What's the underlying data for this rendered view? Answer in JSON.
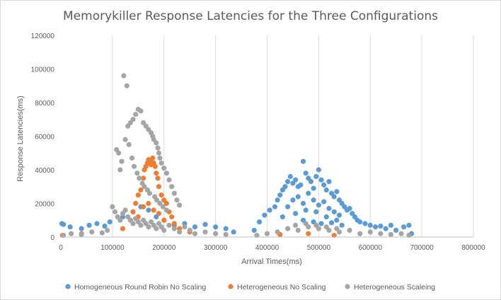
{
  "chart_data": {
    "type": "scatter",
    "title": "Memorykiller Response Latencies for the Three Configurations",
    "xlabel": "Arrival Times(ms)",
    "ylabel": "Response Latencies(ms)",
    "xlim": [
      0,
      800000
    ],
    "ylim": [
      0,
      120000
    ],
    "xticks": [
      0,
      100000,
      200000,
      300000,
      400000,
      500000,
      600000,
      700000,
      800000
    ],
    "yticks": [
      0,
      20000,
      40000,
      60000,
      80000,
      100000,
      120000
    ],
    "x_tick_labels": [
      "0",
      "100000",
      "200000",
      "300000",
      "400000",
      "500000",
      "600000",
      "700000",
      "800000"
    ],
    "y_tick_labels": [
      "0",
      "20000",
      "40000",
      "60000",
      "80000",
      "100000",
      "120000"
    ],
    "grid": "vertical",
    "legend_position": "bottom",
    "series": [
      {
        "name": "Homogeneous Round Robin No Scaling",
        "color": "#5b9bd5",
        "points": [
          [
            2000,
            8000
          ],
          [
            5000,
            7500
          ],
          [
            18000,
            6000
          ],
          [
            40000,
            5000
          ],
          [
            55000,
            7000
          ],
          [
            70000,
            8000
          ],
          [
            85000,
            6500
          ],
          [
            95000,
            9000
          ],
          [
            120000,
            12000
          ],
          [
            140000,
            15000
          ],
          [
            155000,
            18000
          ],
          [
            170000,
            16000
          ],
          [
            185000,
            12000
          ],
          [
            200000,
            10000
          ],
          [
            220000,
            7000
          ],
          [
            240000,
            8000
          ],
          [
            260000,
            6000
          ],
          [
            280000,
            7500
          ],
          [
            300000,
            6000
          ],
          [
            320000,
            5000
          ],
          [
            335000,
            3000
          ],
          [
            375000,
            4000
          ],
          [
            385000,
            9000
          ],
          [
            395000,
            13000
          ],
          [
            405000,
            16000
          ],
          [
            415000,
            18000
          ],
          [
            420000,
            22000
          ],
          [
            425000,
            25000
          ],
          [
            430000,
            28000
          ],
          [
            435000,
            30000
          ],
          [
            440000,
            33000
          ],
          [
            445000,
            36000
          ],
          [
            450000,
            32000
          ],
          [
            455000,
            34000
          ],
          [
            460000,
            30000
          ],
          [
            465000,
            31000
          ],
          [
            470000,
            45000
          ],
          [
            475000,
            38000
          ],
          [
            480000,
            35000
          ],
          [
            485000,
            33000
          ],
          [
            490000,
            29000
          ],
          [
            495000,
            36000
          ],
          [
            500000,
            40000
          ],
          [
            505000,
            34000
          ],
          [
            510000,
            31000
          ],
          [
            515000,
            28000
          ],
          [
            520000,
            33000
          ],
          [
            525000,
            26000
          ],
          [
            530000,
            24000
          ],
          [
            535000,
            27000
          ],
          [
            540000,
            22000
          ],
          [
            545000,
            20000
          ],
          [
            550000,
            18000
          ],
          [
            555000,
            16000
          ],
          [
            560000,
            17000
          ],
          [
            565000,
            14000
          ],
          [
            570000,
            12000
          ],
          [
            575000,
            10000
          ],
          [
            580000,
            9000
          ],
          [
            590000,
            8000
          ],
          [
            600000,
            7000
          ],
          [
            610000,
            6000
          ],
          [
            620000,
            6500
          ],
          [
            630000,
            5000
          ],
          [
            640000,
            7000
          ],
          [
            650000,
            4000
          ],
          [
            665000,
            6000
          ],
          [
            675000,
            7000
          ],
          [
            680000,
            2000
          ],
          [
            430000,
            12000
          ],
          [
            440000,
            18000
          ],
          [
            450000,
            22000
          ],
          [
            460000,
            24000
          ],
          [
            470000,
            20000
          ],
          [
            480000,
            26000
          ],
          [
            490000,
            22000
          ],
          [
            500000,
            19000
          ],
          [
            510000,
            21000
          ],
          [
            520000,
            17000
          ],
          [
            530000,
            15000
          ],
          [
            540000,
            13000
          ],
          [
            455000,
            14000
          ],
          [
            475000,
            16000
          ],
          [
            495000,
            15000
          ],
          [
            515000,
            12000
          ],
          [
            535000,
            10000
          ],
          [
            470000,
            10000
          ],
          [
            490000,
            9000
          ],
          [
            505000,
            8000
          ],
          [
            525000,
            8500
          ],
          [
            545000,
            7000
          ]
        ]
      },
      {
        "name": "Heterogeneous No Scaling",
        "color": "#ed7d31",
        "points": [
          [
            3000,
            1000
          ],
          [
            40000,
            2000
          ],
          [
            120000,
            5000
          ],
          [
            135000,
            10000
          ],
          [
            145000,
            20000
          ],
          [
            150000,
            25000
          ],
          [
            155000,
            28000
          ],
          [
            160000,
            35000
          ],
          [
            162000,
            40000
          ],
          [
            165000,
            42000
          ],
          [
            168000,
            44000
          ],
          [
            170000,
            46000
          ],
          [
            173000,
            45000
          ],
          [
            175000,
            43000
          ],
          [
            178000,
            47000
          ],
          [
            180000,
            44000
          ],
          [
            183000,
            42000
          ],
          [
            185000,
            38000
          ],
          [
            188000,
            35000
          ],
          [
            190000,
            30000
          ],
          [
            195000,
            25000
          ],
          [
            200000,
            22000
          ],
          [
            205000,
            20000
          ],
          [
            210000,
            15000
          ],
          [
            215000,
            12000
          ],
          [
            220000,
            8000
          ],
          [
            230000,
            5000
          ],
          [
            250000,
            3000
          ],
          [
            140000,
            15000
          ],
          [
            150000,
            12000
          ],
          [
            160000,
            18000
          ],
          [
            170000,
            20000
          ],
          [
            180000,
            16000
          ],
          [
            190000,
            14000
          ],
          [
            200000,
            10000
          ],
          [
            425000,
            1500
          ],
          [
            480000,
            2000
          ],
          [
            530000,
            1000
          ]
        ]
      },
      {
        "name": "Heterogeneous Scaleing",
        "color": "#a5a5a5",
        "points": [
          [
            122000,
            96000
          ],
          [
            128000,
            90000
          ],
          [
            150000,
            76000
          ],
          [
            155000,
            75000
          ],
          [
            145000,
            73000
          ],
          [
            140000,
            70000
          ],
          [
            135000,
            68000
          ],
          [
            130000,
            66000
          ],
          [
            160000,
            68000
          ],
          [
            165000,
            66000
          ],
          [
            170000,
            64000
          ],
          [
            175000,
            62000
          ],
          [
            178000,
            60000
          ],
          [
            180000,
            58000
          ],
          [
            185000,
            56000
          ],
          [
            188000,
            53000
          ],
          [
            190000,
            50000
          ],
          [
            192000,
            47000
          ],
          [
            195000,
            44000
          ],
          [
            200000,
            41000
          ],
          [
            205000,
            38000
          ],
          [
            210000,
            34000
          ],
          [
            215000,
            30000
          ],
          [
            220000,
            26000
          ],
          [
            225000,
            22000
          ],
          [
            230000,
            19000
          ],
          [
            108000,
            52000
          ],
          [
            112000,
            50000
          ],
          [
            115000,
            40000
          ],
          [
            118000,
            45000
          ],
          [
            125000,
            58000
          ],
          [
            132000,
            55000
          ],
          [
            138000,
            47000
          ],
          [
            142000,
            42000
          ],
          [
            148000,
            38000
          ],
          [
            152000,
            35000
          ],
          [
            158000,
            32000
          ],
          [
            162000,
            30000
          ],
          [
            168000,
            28000
          ],
          [
            172000,
            26000
          ],
          [
            182000,
            24000
          ],
          [
            186000,
            22000
          ],
          [
            192000,
            20000
          ],
          [
            198000,
            18000
          ],
          [
            205000,
            16000
          ],
          [
            100000,
            18000
          ],
          [
            105000,
            15000
          ],
          [
            110000,
            12000
          ],
          [
            115000,
            10000
          ],
          [
            120000,
            14000
          ],
          [
            125000,
            16000
          ],
          [
            130000,
            12000
          ],
          [
            135000,
            10000
          ],
          [
            140000,
            8000
          ],
          [
            145000,
            11000
          ],
          [
            150000,
            9000
          ],
          [
            155000,
            7000
          ],
          [
            160000,
            10000
          ],
          [
            165000,
            8000
          ],
          [
            170000,
            6000
          ],
          [
            175000,
            9000
          ],
          [
            180000,
            7000
          ],
          [
            185000,
            5000
          ],
          [
            190000,
            8000
          ],
          [
            195000,
            6000
          ],
          [
            200000,
            4000
          ],
          [
            210000,
            7000
          ],
          [
            220000,
            5000
          ],
          [
            230000,
            3000
          ],
          [
            240000,
            6000
          ],
          [
            250000,
            4000
          ],
          [
            260000,
            2000
          ],
          [
            280000,
            3000
          ],
          [
            300000,
            2000
          ],
          [
            320000,
            1500
          ],
          [
            5000,
            1000
          ],
          [
            20000,
            2000
          ],
          [
            40000,
            1500
          ],
          [
            60000,
            3000
          ],
          [
            80000,
            2500
          ],
          [
            90000,
            4000
          ],
          [
            380000,
            1000
          ],
          [
            400000,
            2000
          ],
          [
            420000,
            3000
          ],
          [
            440000,
            5000
          ],
          [
            460000,
            4000
          ],
          [
            480000,
            6000
          ],
          [
            500000,
            5000
          ],
          [
            520000,
            4000
          ],
          [
            540000,
            3000
          ],
          [
            560000,
            4000
          ],
          [
            580000,
            2000
          ],
          [
            600000,
            3000
          ],
          [
            620000,
            2000
          ],
          [
            640000,
            1500
          ],
          [
            660000,
            2000
          ],
          [
            675000,
            1000
          ],
          [
            455000,
            7000
          ],
          [
            475000,
            8000
          ],
          [
            495000,
            7000
          ],
          [
            515000,
            6000
          ],
          [
            535000,
            5000
          ]
        ]
      }
    ]
  }
}
